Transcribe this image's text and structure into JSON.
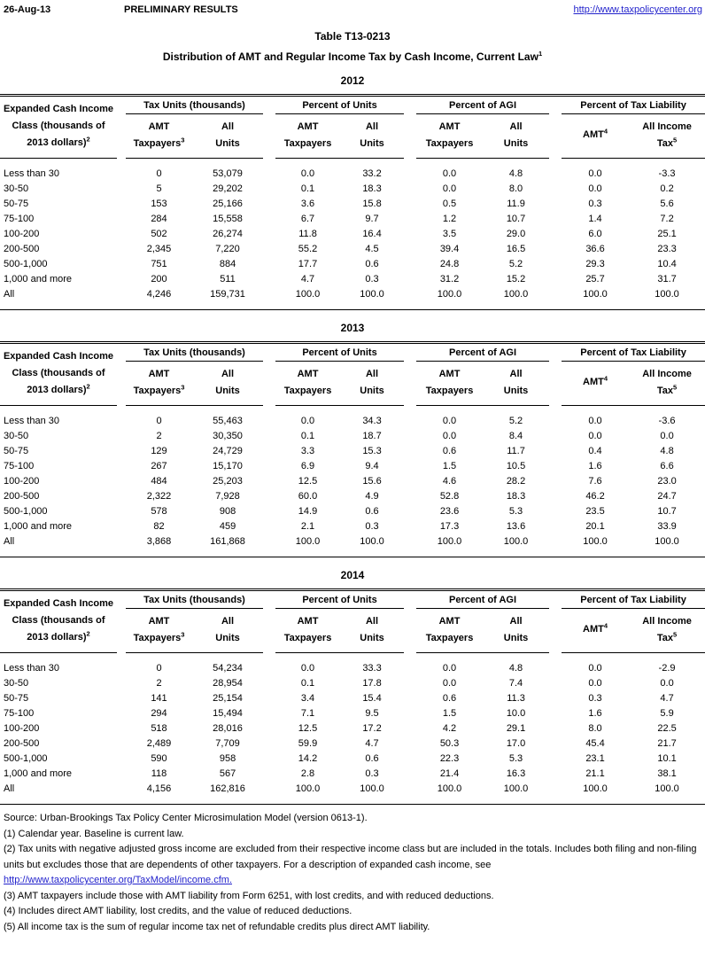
{
  "header": {
    "date": "26-Aug-13",
    "status": "PRELIMINARY RESULTS",
    "url": "http://www.taxpolicycenter.org"
  },
  "title": {
    "line1": "Table T13-0213",
    "line2": "Distribution of AMT and Regular Income Tax by Cash Income, Current Law",
    "line2_sup": "1"
  },
  "table_header": {
    "row_col": {
      "lines": [
        "Expanded Cash Income",
        "Class (thousands of",
        "2013 dollars)"
      ],
      "sup": "2"
    },
    "groups": [
      {
        "title": "Tax Units (thousands)",
        "cols": [
          {
            "l1": "AMT",
            "l2": "Taxpayers",
            "sup": "3"
          },
          {
            "l1": "All",
            "l2": "Units"
          }
        ]
      },
      {
        "title": "Percent of Units",
        "cols": [
          {
            "l1": "AMT",
            "l2": "Taxpayers"
          },
          {
            "l1": "All",
            "l2": "Units"
          }
        ]
      },
      {
        "title": "Percent of AGI",
        "cols": [
          {
            "l1": "AMT",
            "l2": "Taxpayers"
          },
          {
            "l1": "All",
            "l2": "Units"
          }
        ]
      },
      {
        "title": "Percent of Tax Liability",
        "cols": [
          {
            "single": "AMT",
            "sup": "4"
          },
          {
            "l1": "All Income",
            "l2": "Tax",
            "sup": "5"
          }
        ]
      }
    ]
  },
  "tables": [
    {
      "year": "2012",
      "rows": [
        [
          "Less than 30",
          "0",
          "53,079",
          "0.0",
          "33.2",
          "0.0",
          "4.8",
          "0.0",
          "-3.3"
        ],
        [
          "30-50",
          "5",
          "29,202",
          "0.1",
          "18.3",
          "0.0",
          "8.0",
          "0.0",
          "0.2"
        ],
        [
          "50-75",
          "153",
          "25,166",
          "3.6",
          "15.8",
          "0.5",
          "11.9",
          "0.3",
          "5.6"
        ],
        [
          "75-100",
          "284",
          "15,558",
          "6.7",
          "9.7",
          "1.2",
          "10.7",
          "1.4",
          "7.2"
        ],
        [
          "100-200",
          "502",
          "26,274",
          "11.8",
          "16.4",
          "3.5",
          "29.0",
          "6.0",
          "25.1"
        ],
        [
          "200-500",
          "2,345",
          "7,220",
          "55.2",
          "4.5",
          "39.4",
          "16.5",
          "36.6",
          "23.3"
        ],
        [
          "500-1,000",
          "751",
          "884",
          "17.7",
          "0.6",
          "24.8",
          "5.2",
          "29.3",
          "10.4"
        ],
        [
          "1,000 and more",
          "200",
          "511",
          "4.7",
          "0.3",
          "31.2",
          "15.2",
          "25.7",
          "31.7"
        ],
        [
          "All",
          "4,246",
          "159,731",
          "100.0",
          "100.0",
          "100.0",
          "100.0",
          "100.0",
          "100.0"
        ]
      ]
    },
    {
      "year": "2013",
      "rows": [
        [
          "Less than 30",
          "0",
          "55,463",
          "0.0",
          "34.3",
          "0.0",
          "5.2",
          "0.0",
          "-3.6"
        ],
        [
          "30-50",
          "2",
          "30,350",
          "0.1",
          "18.7",
          "0.0",
          "8.4",
          "0.0",
          "0.0"
        ],
        [
          "50-75",
          "129",
          "24,729",
          "3.3",
          "15.3",
          "0.6",
          "11.7",
          "0.4",
          "4.8"
        ],
        [
          "75-100",
          "267",
          "15,170",
          "6.9",
          "9.4",
          "1.5",
          "10.5",
          "1.6",
          "6.6"
        ],
        [
          "100-200",
          "484",
          "25,203",
          "12.5",
          "15.6",
          "4.6",
          "28.2",
          "7.6",
          "23.0"
        ],
        [
          "200-500",
          "2,322",
          "7,928",
          "60.0",
          "4.9",
          "52.8",
          "18.3",
          "46.2",
          "24.7"
        ],
        [
          "500-1,000",
          "578",
          "908",
          "14.9",
          "0.6",
          "23.6",
          "5.3",
          "23.5",
          "10.7"
        ],
        [
          "1,000 and more",
          "82",
          "459",
          "2.1",
          "0.3",
          "17.3",
          "13.6",
          "20.1",
          "33.9"
        ],
        [
          "All",
          "3,868",
          "161,868",
          "100.0",
          "100.0",
          "100.0",
          "100.0",
          "100.0",
          "100.0"
        ]
      ]
    },
    {
      "year": "2014",
      "rows": [
        [
          "Less than 30",
          "0",
          "54,234",
          "0.0",
          "33.3",
          "0.0",
          "4.8",
          "0.0",
          "-2.9"
        ],
        [
          "30-50",
          "2",
          "28,954",
          "0.1",
          "17.8",
          "0.0",
          "7.4",
          "0.0",
          "0.0"
        ],
        [
          "50-75",
          "141",
          "25,154",
          "3.4",
          "15.4",
          "0.6",
          "11.3",
          "0.3",
          "4.7"
        ],
        [
          "75-100",
          "294",
          "15,494",
          "7.1",
          "9.5",
          "1.5",
          "10.0",
          "1.6",
          "5.9"
        ],
        [
          "100-200",
          "518",
          "28,016",
          "12.5",
          "17.2",
          "4.2",
          "29.1",
          "8.0",
          "22.5"
        ],
        [
          "200-500",
          "2,489",
          "7,709",
          "59.9",
          "4.7",
          "50.3",
          "17.0",
          "45.4",
          "21.7"
        ],
        [
          "500-1,000",
          "590",
          "958",
          "14.2",
          "0.6",
          "22.3",
          "5.3",
          "23.1",
          "10.1"
        ],
        [
          "1,000 and more",
          "118",
          "567",
          "2.8",
          "0.3",
          "21.4",
          "16.3",
          "21.1",
          "38.1"
        ],
        [
          "All",
          "4,156",
          "162,816",
          "100.0",
          "100.0",
          "100.0",
          "100.0",
          "100.0",
          "100.0"
        ]
      ]
    }
  ],
  "footnotes": [
    {
      "text": "Source: Urban-Brookings Tax Policy Center Microsimulation Model (version 0613-1)."
    },
    {
      "text": "(1) Calendar year. Baseline is current law."
    },
    {
      "text": "(2) Tax units with negative adjusted gross income are excluded from their respective income class but are included in the totals. Includes both filing and non-filing units but excludes those that are dependents of other taxpayers. For a description of expanded cash income, see"
    },
    {
      "link": "http://www.taxpolicycenter.org/TaxModel/income.cfm."
    },
    {
      "text": "(3) AMT taxpayers include those with AMT liability from Form 6251, with lost credits, and with reduced deductions."
    },
    {
      "text": "(4) Includes direct AMT liability, lost credits, and the value of reduced deductions."
    },
    {
      "text": "(5) All income tax is the sum of regular income tax net of refundable credits plus direct AMT liability."
    }
  ],
  "colors": {
    "link_blue": "#2323cc",
    "text": "#000000",
    "background": "#ffffff"
  }
}
